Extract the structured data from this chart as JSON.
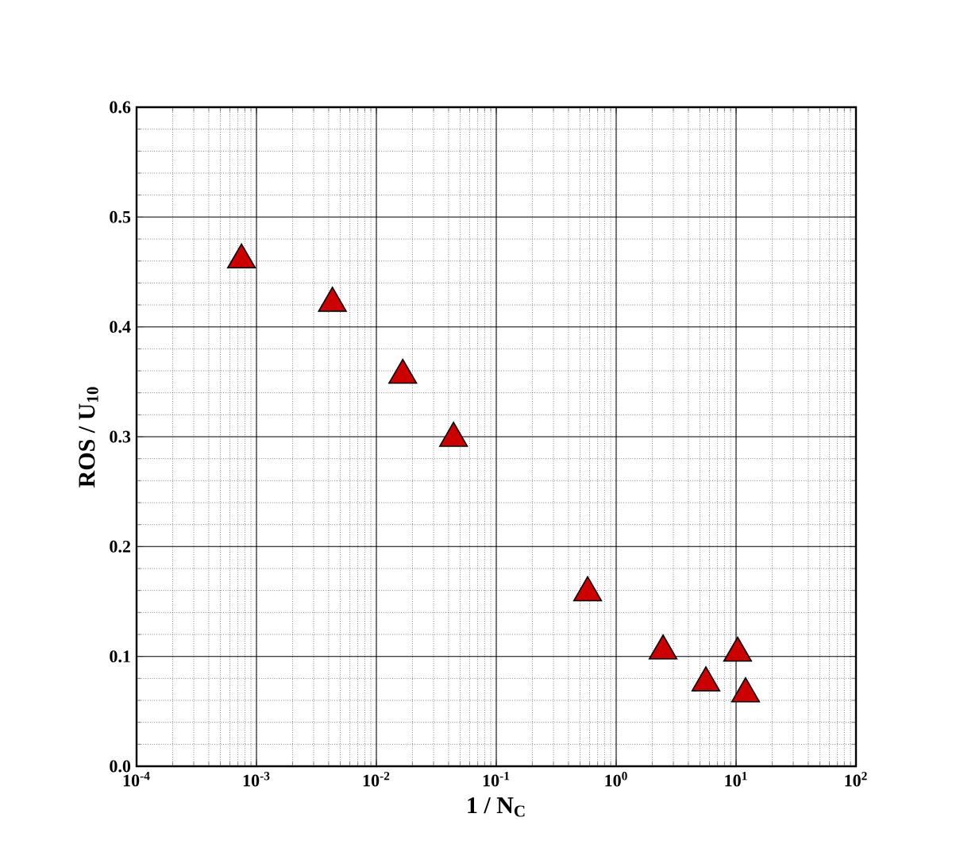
{
  "chart_data": {
    "type": "scatter",
    "xlabel": "1 / N$_{C}$",
    "ylabel": "ROS / U$_{10}$",
    "x": [
      0.00075,
      0.0043,
      0.0166,
      0.044,
      0.578,
      2.46,
      10.3,
      5.6,
      12
    ],
    "values": [
      0.461,
      0.4215,
      0.356,
      0.2986,
      0.158,
      0.105,
      0.103,
      0.076,
      0.066
    ],
    "color": "#cc0000",
    "marker": "triangle",
    "log": "x",
    "grid": true,
    "xlim": [
      0.0001,
      100
    ],
    "ylim": [
      0,
      0.6
    ],
    "xticks": [
      {
        "value": 0.0001,
        "label": "10$^{-4}$"
      },
      {
        "value": 0.001,
        "label": "10$^{-3}$"
      },
      {
        "value": 0.01,
        "label": "10$^{-2}$"
      },
      {
        "value": 0.1,
        "label": "10$^{-1}$"
      },
      {
        "value": 1,
        "label": "10$^{0}$"
      },
      {
        "value": 10,
        "label": "10$^{1}$"
      },
      {
        "value": 100,
        "label": "10$^{2}$"
      }
    ],
    "yticks": [
      {
        "value": 0,
        "label": "0.0"
      },
      {
        "value": 0.1,
        "label": "0.1"
      },
      {
        "value": 0.2,
        "label": "0.2"
      },
      {
        "value": 0.3,
        "label": "0.3"
      },
      {
        "value": 0.4,
        "label": "0.4"
      },
      {
        "value": 0.5,
        "label": "0.5"
      },
      {
        "value": 0.6,
        "label": "0.6"
      }
    ]
  }
}
